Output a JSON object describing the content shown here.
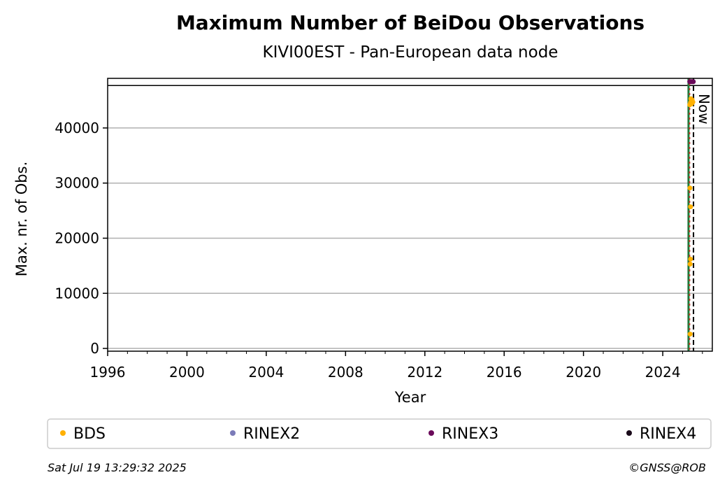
{
  "chart_data": {
    "type": "scatter",
    "title": "Maximum Number of BeiDou Observations",
    "subtitle": "KIVI00EST - Pan-European data node",
    "xlabel": "Year",
    "ylabel": "Max. nr. of Obs.",
    "xlim": [
      1996,
      2026.5
    ],
    "ylim": [
      -500,
      49000
    ],
    "xticks": [
      1996,
      2000,
      2004,
      2008,
      2012,
      2016,
      2020,
      2024
    ],
    "yticks": [
      0,
      10000,
      20000,
      30000,
      40000
    ],
    "grid": "horizontal",
    "hline": 47700,
    "vlines": [
      {
        "x": 2025.3,
        "color": "#1b7a3a",
        "style": "solid",
        "label": ""
      },
      {
        "x": 2025.35,
        "color": "#c0392b",
        "style": "dotted",
        "label": ""
      },
      {
        "x": 2025.55,
        "color": "#000000",
        "style": "dashed",
        "label": "Now"
      }
    ],
    "series": [
      {
        "name": "BDS",
        "color": "#ffb000",
        "points": [
          {
            "x": 2025.38,
            "y": 2600
          },
          {
            "x": 2025.38,
            "y": 15300
          },
          {
            "x": 2025.4,
            "y": 16200
          },
          {
            "x": 2025.4,
            "y": 25700
          },
          {
            "x": 2025.37,
            "y": 29100
          },
          {
            "x": 2025.36,
            "y": 44200
          },
          {
            "x": 2025.4,
            "y": 44600
          },
          {
            "x": 2025.44,
            "y": 44900
          },
          {
            "x": 2025.48,
            "y": 45100
          },
          {
            "x": 2025.52,
            "y": 44700
          },
          {
            "x": 2025.46,
            "y": 44400
          },
          {
            "x": 2025.42,
            "y": 45300
          }
        ]
      },
      {
        "name": "RINEX2",
        "color": "#7b7bb8",
        "points": []
      },
      {
        "name": "RINEX3",
        "color": "#6a0a5a",
        "points": [
          {
            "x": 2025.36,
            "y": 48400
          },
          {
            "x": 2025.42,
            "y": 48400
          },
          {
            "x": 2025.48,
            "y": 48400
          },
          {
            "x": 2025.54,
            "y": 48400
          }
        ]
      },
      {
        "name": "RINEX4",
        "color": "#1a0a1a",
        "points": []
      }
    ],
    "legend": [
      "BDS",
      "RINEX2",
      "RINEX3",
      "RINEX4"
    ],
    "legend_position": "bottom"
  },
  "footer": {
    "timestamp": "Sat Jul 19 13:29:32 2025",
    "credit": "©GNSS@ROB"
  }
}
